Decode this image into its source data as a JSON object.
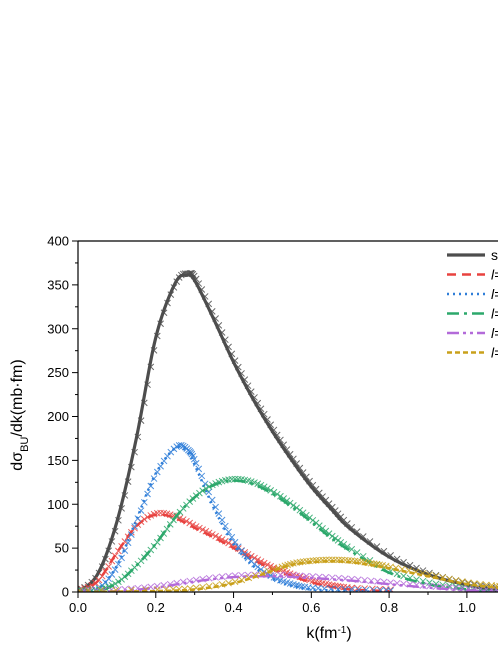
{
  "chart_data": {
    "type": "line",
    "xlabel": "k(fm",
    "xlabel_sup": "-1",
    "xlabel_end": ")",
    "ylabel_prefix": "dσ",
    "ylabel_sub": "BU",
    "ylabel_suffix": "/dk(mb·fm)",
    "xlim": [
      0.0,
      1.08
    ],
    "ylim": [
      0,
      400
    ],
    "xticks": [
      "0.0",
      "0.2",
      "0.4",
      "0.6",
      "0.8",
      "1.0"
    ],
    "xtick_values": [
      0.0,
      0.2,
      0.4,
      0.6,
      0.8,
      1.0
    ],
    "yticks": [
      "0",
      "50",
      "100",
      "150",
      "200",
      "250",
      "300",
      "350",
      "400"
    ],
    "ytick_values": [
      0,
      50,
      100,
      150,
      200,
      250,
      300,
      350,
      400
    ],
    "legend_position": "top-right (clipped)",
    "legend_labels": [
      "s",
      "l=",
      "l=",
      "l=",
      "l=",
      "l="
    ],
    "series": [
      {
        "color": "#4d4d4d",
        "dash": "",
        "width": 3.2,
        "marker": "x",
        "x": [
          0,
          0.05,
          0.1,
          0.15,
          0.2,
          0.25,
          0.28,
          0.3,
          0.35,
          0.4,
          0.45,
          0.5,
          0.55,
          0.6,
          0.65,
          0.7,
          0.8,
          0.9,
          1.0,
          1.08
        ],
        "y": [
          0,
          20,
          80,
          175,
          290,
          352,
          361,
          355,
          310,
          262,
          220,
          183,
          150,
          120,
          95,
          72,
          40,
          20,
          8,
          2
        ]
      },
      {
        "color": "#e8423f",
        "dash": "9,6",
        "width": 2.4,
        "marker": "x",
        "x": [
          0,
          0.05,
          0.1,
          0.15,
          0.2,
          0.25,
          0.3,
          0.35,
          0.4,
          0.45,
          0.5,
          0.55,
          0.6,
          0.65,
          0.7,
          0.8
        ],
        "y": [
          0,
          12,
          45,
          75,
          88,
          84,
          73,
          62,
          50,
          37,
          26,
          18,
          11,
          6,
          3,
          1
        ]
      },
      {
        "color": "#2f7ed8",
        "dash": "2,4",
        "width": 2.6,
        "marker": "x",
        "x": [
          0,
          0.05,
          0.1,
          0.15,
          0.2,
          0.25,
          0.28,
          0.3,
          0.35,
          0.4,
          0.45,
          0.5,
          0.55,
          0.6,
          0.7,
          0.8
        ],
        "y": [
          0,
          3,
          30,
          82,
          135,
          164,
          160,
          145,
          95,
          55,
          30,
          15,
          7,
          3,
          1,
          0
        ]
      },
      {
        "color": "#2ca86b",
        "dash": "12,5,3,5",
        "width": 2.6,
        "marker": "x",
        "x": [
          0,
          0.05,
          0.1,
          0.15,
          0.2,
          0.25,
          0.3,
          0.35,
          0.4,
          0.45,
          0.5,
          0.55,
          0.6,
          0.65,
          0.7,
          0.8,
          0.9,
          1.0,
          1.08
        ],
        "y": [
          0,
          1,
          10,
          30,
          55,
          85,
          108,
          122,
          127,
          123,
          112,
          97,
          80,
          62,
          47,
          22,
          9,
          3,
          1
        ]
      },
      {
        "color": "#b36ad9",
        "dash": "12,4,3,4,3,4",
        "width": 2.4,
        "marker": "x",
        "x": [
          0,
          0.1,
          0.2,
          0.3,
          0.4,
          0.5,
          0.6,
          0.7,
          0.8,
          0.9,
          1.0,
          1.08
        ],
        "y": [
          0,
          1,
          5,
          12,
          17,
          18,
          16,
          13,
          9,
          5,
          2,
          1
        ]
      },
      {
        "color": "#c9a01a",
        "dash": "5,3",
        "width": 2.6,
        "marker": "x",
        "x": [
          0,
          0.2,
          0.3,
          0.4,
          0.5,
          0.55,
          0.6,
          0.65,
          0.7,
          0.75,
          0.8,
          0.9,
          1.0,
          1.08
        ],
        "y": [
          0,
          1,
          3,
          10,
          24,
          31,
          34,
          35,
          34,
          31,
          27,
          18,
          9,
          5
        ]
      }
    ]
  }
}
